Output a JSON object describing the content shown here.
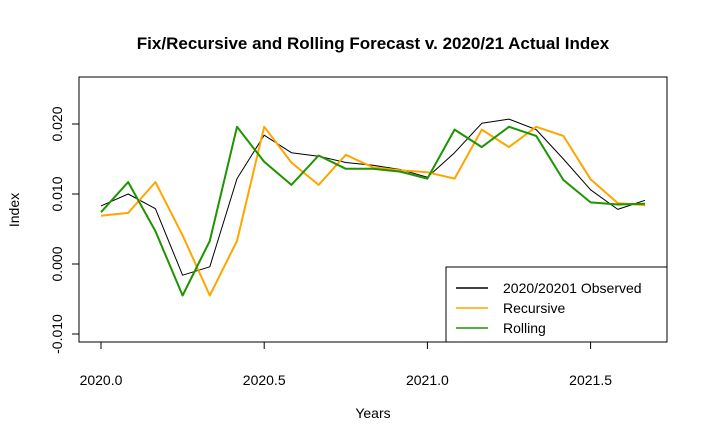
{
  "chart_data": {
    "type": "line",
    "title": "Fix/Recursive and Rolling Forecast v. 2020/21 Actual Index",
    "xlabel": "Years",
    "ylabel": "Index",
    "xlim": [
      1.995,
      2.005
    ],
    "ylim": [
      -0.0118,
      0.0267
    ],
    "x_ticks": [
      {
        "value": 2020.0,
        "label": "2020.0"
      },
      {
        "value": 2020.5,
        "label": "2020.5"
      },
      {
        "value": 2021.0,
        "label": "2021.0"
      },
      {
        "value": 2021.5,
        "label": "2021.5"
      }
    ],
    "y_ticks": [
      {
        "value": -0.01,
        "label": "-0.010"
      },
      {
        "value": 0.0,
        "label": "0.000"
      },
      {
        "value": 0.01,
        "label": "0.010"
      },
      {
        "value": 0.02,
        "label": "0.020"
      }
    ],
    "x": [
      2020.0,
      2020.0833,
      2020.1667,
      2020.25,
      2020.3333,
      2020.4167,
      2020.5,
      2020.5833,
      2020.6667,
      2020.75,
      2020.8333,
      2020.9167,
      2021.0,
      2021.0833,
      2021.1667,
      2021.25,
      2021.3333,
      2021.4167,
      2021.5,
      2021.5833,
      2021.6667
    ],
    "series": [
      {
        "name": "2020/20201 Observed",
        "color": "#000000",
        "width": 1,
        "values": [
          0.0083,
          0.01,
          0.0079,
          -0.0016,
          -0.0004,
          0.0122,
          0.0184,
          0.0159,
          0.0154,
          0.0145,
          0.0141,
          0.0135,
          0.0124,
          0.0159,
          0.0201,
          0.0207,
          0.0192,
          0.015,
          0.0106,
          0.0078,
          0.0091
        ]
      },
      {
        "name": "Recursive",
        "color": "#FFA500",
        "width": 2,
        "values": [
          0.0069,
          0.0073,
          0.0117,
          0.0041,
          -0.0045,
          0.0033,
          0.0196,
          0.0145,
          0.0113,
          0.0156,
          0.0138,
          0.0134,
          0.0131,
          0.0122,
          0.0192,
          0.0167,
          0.0196,
          0.0183,
          0.0121,
          0.0087,
          0.0084
        ]
      },
      {
        "name": "Rolling",
        "color": "#1E9400",
        "width": 2,
        "values": [
          0.0074,
          0.0117,
          0.0047,
          -0.0045,
          0.0033,
          0.0196,
          0.0146,
          0.0113,
          0.0155,
          0.0136,
          0.0136,
          0.0132,
          0.0122,
          0.0192,
          0.0167,
          0.0196,
          0.0183,
          0.012,
          0.0088,
          0.0085,
          0.0086
        ]
      }
    ],
    "legend_position": "bottom-right",
    "grid": false
  }
}
